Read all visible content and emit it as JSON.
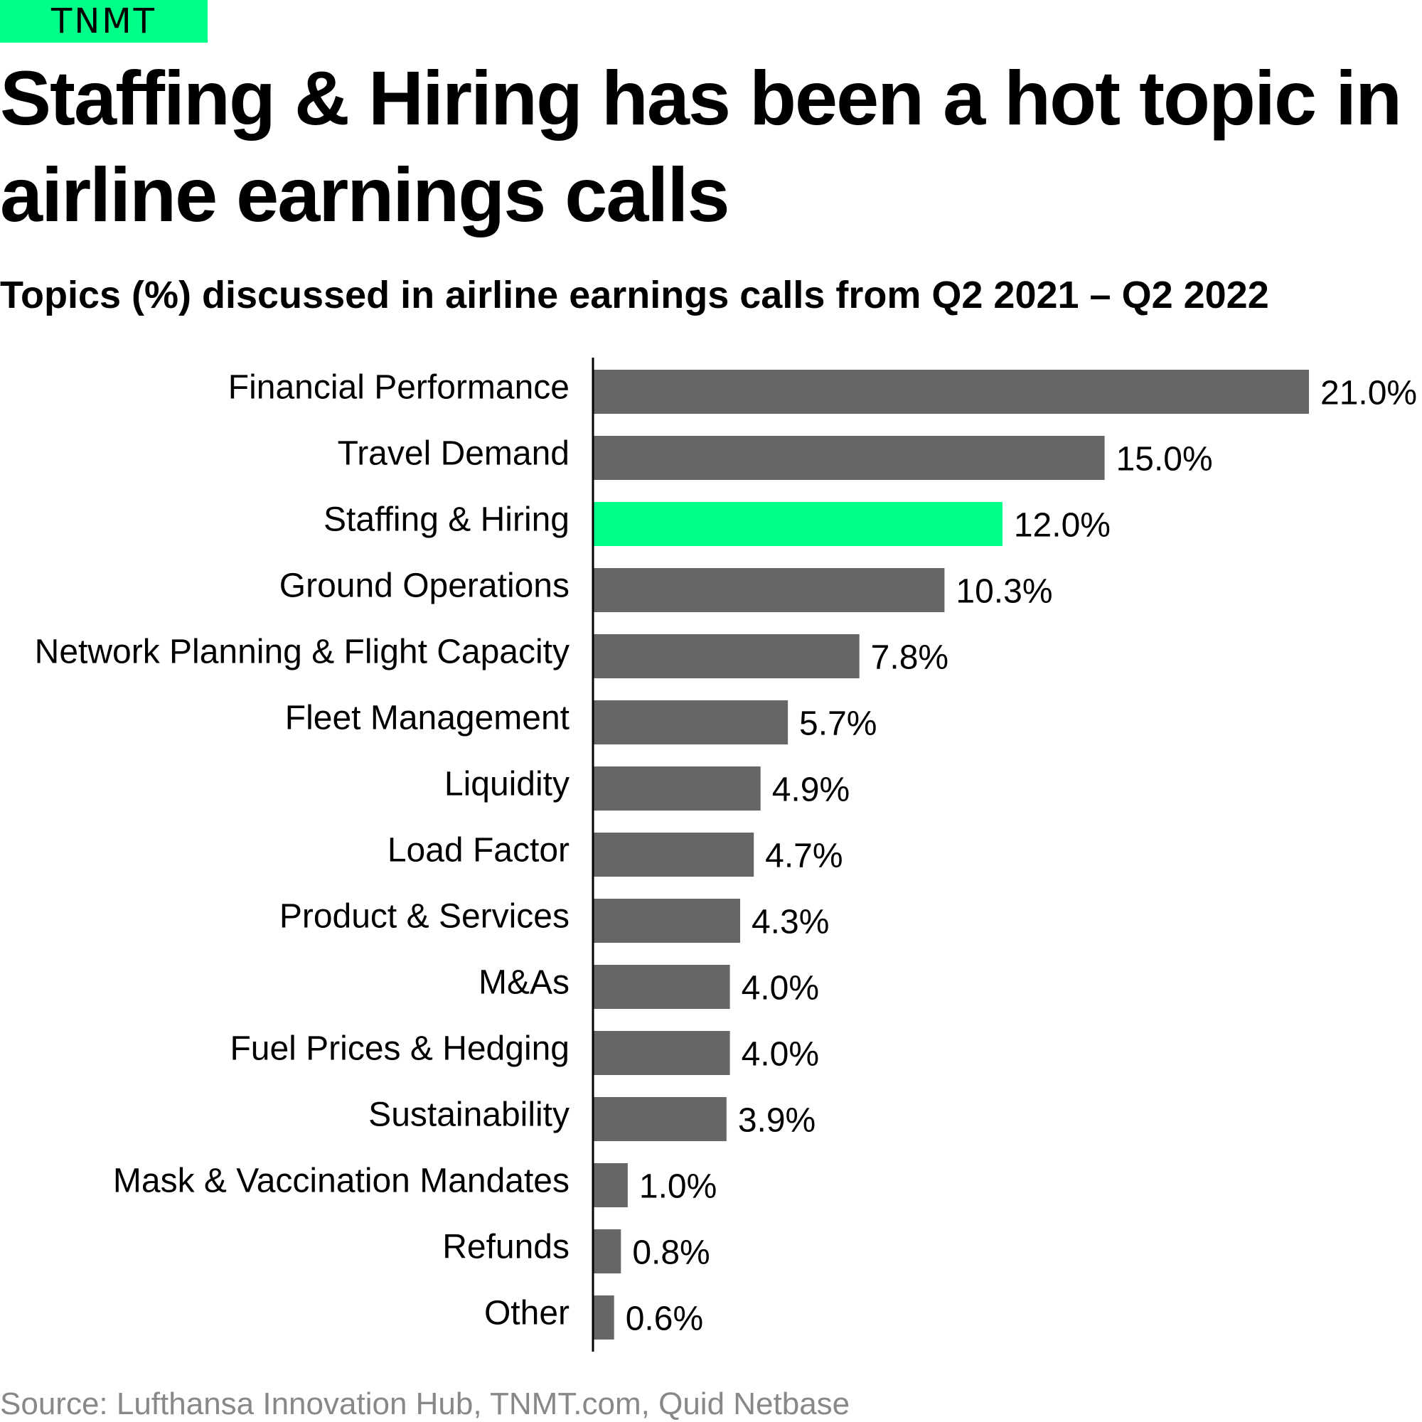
{
  "brand": {
    "logo_text": "TNMT",
    "accent_color": "#00FF88"
  },
  "header": {
    "title": "Staffing & Hiring has been a hot topic in airline earnings calls",
    "subtitle": "Topics (%) discussed in airline earnings calls from Q2 2021 – Q2 2022"
  },
  "footer": {
    "source": "Source: Lufthansa Innovation Hub, TNMT.com, Quid Netbase"
  },
  "chart_data": {
    "type": "bar",
    "orientation": "horizontal",
    "categories": [
      "Financial Performance",
      "Travel Demand",
      "Staffing & Hiring",
      "Ground Operations",
      "Network Planning & Flight Capacity",
      "Fleet Management",
      "Liquidity",
      "Load Factor",
      "Product & Services",
      "M&As",
      "Fuel Prices & Hedging",
      "Sustainability",
      "Mask & Vaccination Mandates",
      "Refunds",
      "Other"
    ],
    "values": [
      21.0,
      15.0,
      12.0,
      10.3,
      7.8,
      5.7,
      4.9,
      4.7,
      4.3,
      4.0,
      4.0,
      3.9,
      1.0,
      0.8,
      0.6
    ],
    "value_labels": [
      "21.0%",
      "15.0%",
      "12.0%",
      "10.3%",
      "7.8%",
      "5.7%",
      "4.9%",
      "4.7%",
      "4.3%",
      "4.0%",
      "4.0%",
      "3.9%",
      "1.0%",
      "0.8%",
      "0.6%"
    ],
    "highlight_category": "Staffing & Hiring",
    "bar_color": "#666666",
    "highlight_color": "#00FF88",
    "axis_color": "#000000",
    "xlim": [
      0,
      21.0
    ],
    "grid": false,
    "legend": "none"
  }
}
